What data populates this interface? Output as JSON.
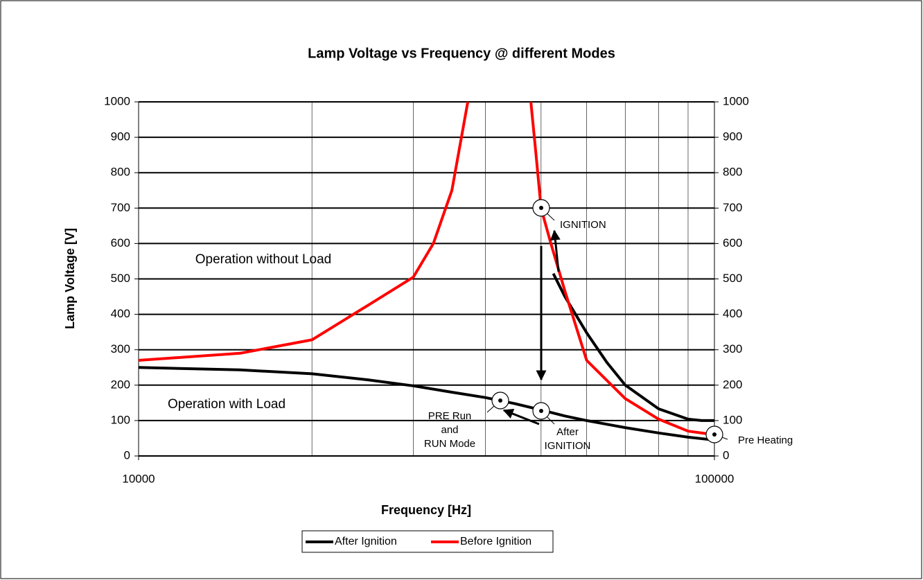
{
  "chart_data": {
    "type": "line",
    "title": "Lamp Voltage vs Frequency @ different Modes",
    "xlabel": "Frequency [Hz]",
    "ylabel": "Lamp Voltage [V]",
    "xscale": "log",
    "xlim": [
      10000,
      100000
    ],
    "xticks": [
      10000,
      100000
    ],
    "xgrid": [
      20000,
      30000,
      40000,
      50000,
      60000,
      70000,
      80000,
      90000
    ],
    "ylim": [
      0,
      1000
    ],
    "yticks": [
      0,
      100,
      200,
      300,
      400,
      500,
      600,
      700,
      800,
      900,
      1000
    ],
    "y2lim": [
      0,
      1000
    ],
    "y2ticks": [
      0,
      100,
      200,
      300,
      400,
      500,
      600,
      700,
      800,
      900,
      1000
    ],
    "grid": true,
    "legend": "bottom",
    "series": [
      {
        "name": "After Ignition",
        "color": "#000000",
        "x": [
          10000,
          15000,
          20000,
          25000,
          30000,
          35000,
          40000,
          45000,
          50000,
          55000,
          60000,
          70000,
          80000,
          90000,
          100000,
          null,
          52500,
          55000,
          60000,
          65000,
          70000,
          80000,
          90000,
          95000,
          100000
        ],
        "values": [
          250,
          243,
          232,
          215,
          198,
          180,
          165,
          148,
          130,
          113,
          100,
          80,
          65,
          53,
          45,
          null,
          515,
          450,
          348,
          265,
          200,
          133,
          104,
          100,
          100
        ]
      },
      {
        "name": "Before Ignition",
        "color": "#ff0000",
        "x": [
          10000,
          15000,
          20000,
          25000,
          30000,
          32500,
          35000,
          37300,
          null,
          48000,
          49000,
          50000,
          52000,
          55000,
          60000,
          70000,
          80000,
          90000,
          100000
        ],
        "values": [
          270,
          290,
          328,
          425,
          505,
          600,
          750,
          1000,
          null,
          1000,
          850,
          700,
          600,
          466,
          270,
          162,
          104,
          70,
          60
        ]
      }
    ],
    "annotations": [
      {
        "lines": [
          "IGNITION"
        ]
      },
      {
        "lines": [
          "After",
          "IGNITION"
        ]
      },
      {
        "lines": [
          "PRE Run",
          "and",
          "RUN Mode"
        ]
      },
      {
        "lines": [
          "Pre Heating"
        ]
      },
      {
        "lines": [
          "Operation without Load"
        ]
      },
      {
        "lines": [
          "Operation with Load"
        ]
      }
    ]
  }
}
